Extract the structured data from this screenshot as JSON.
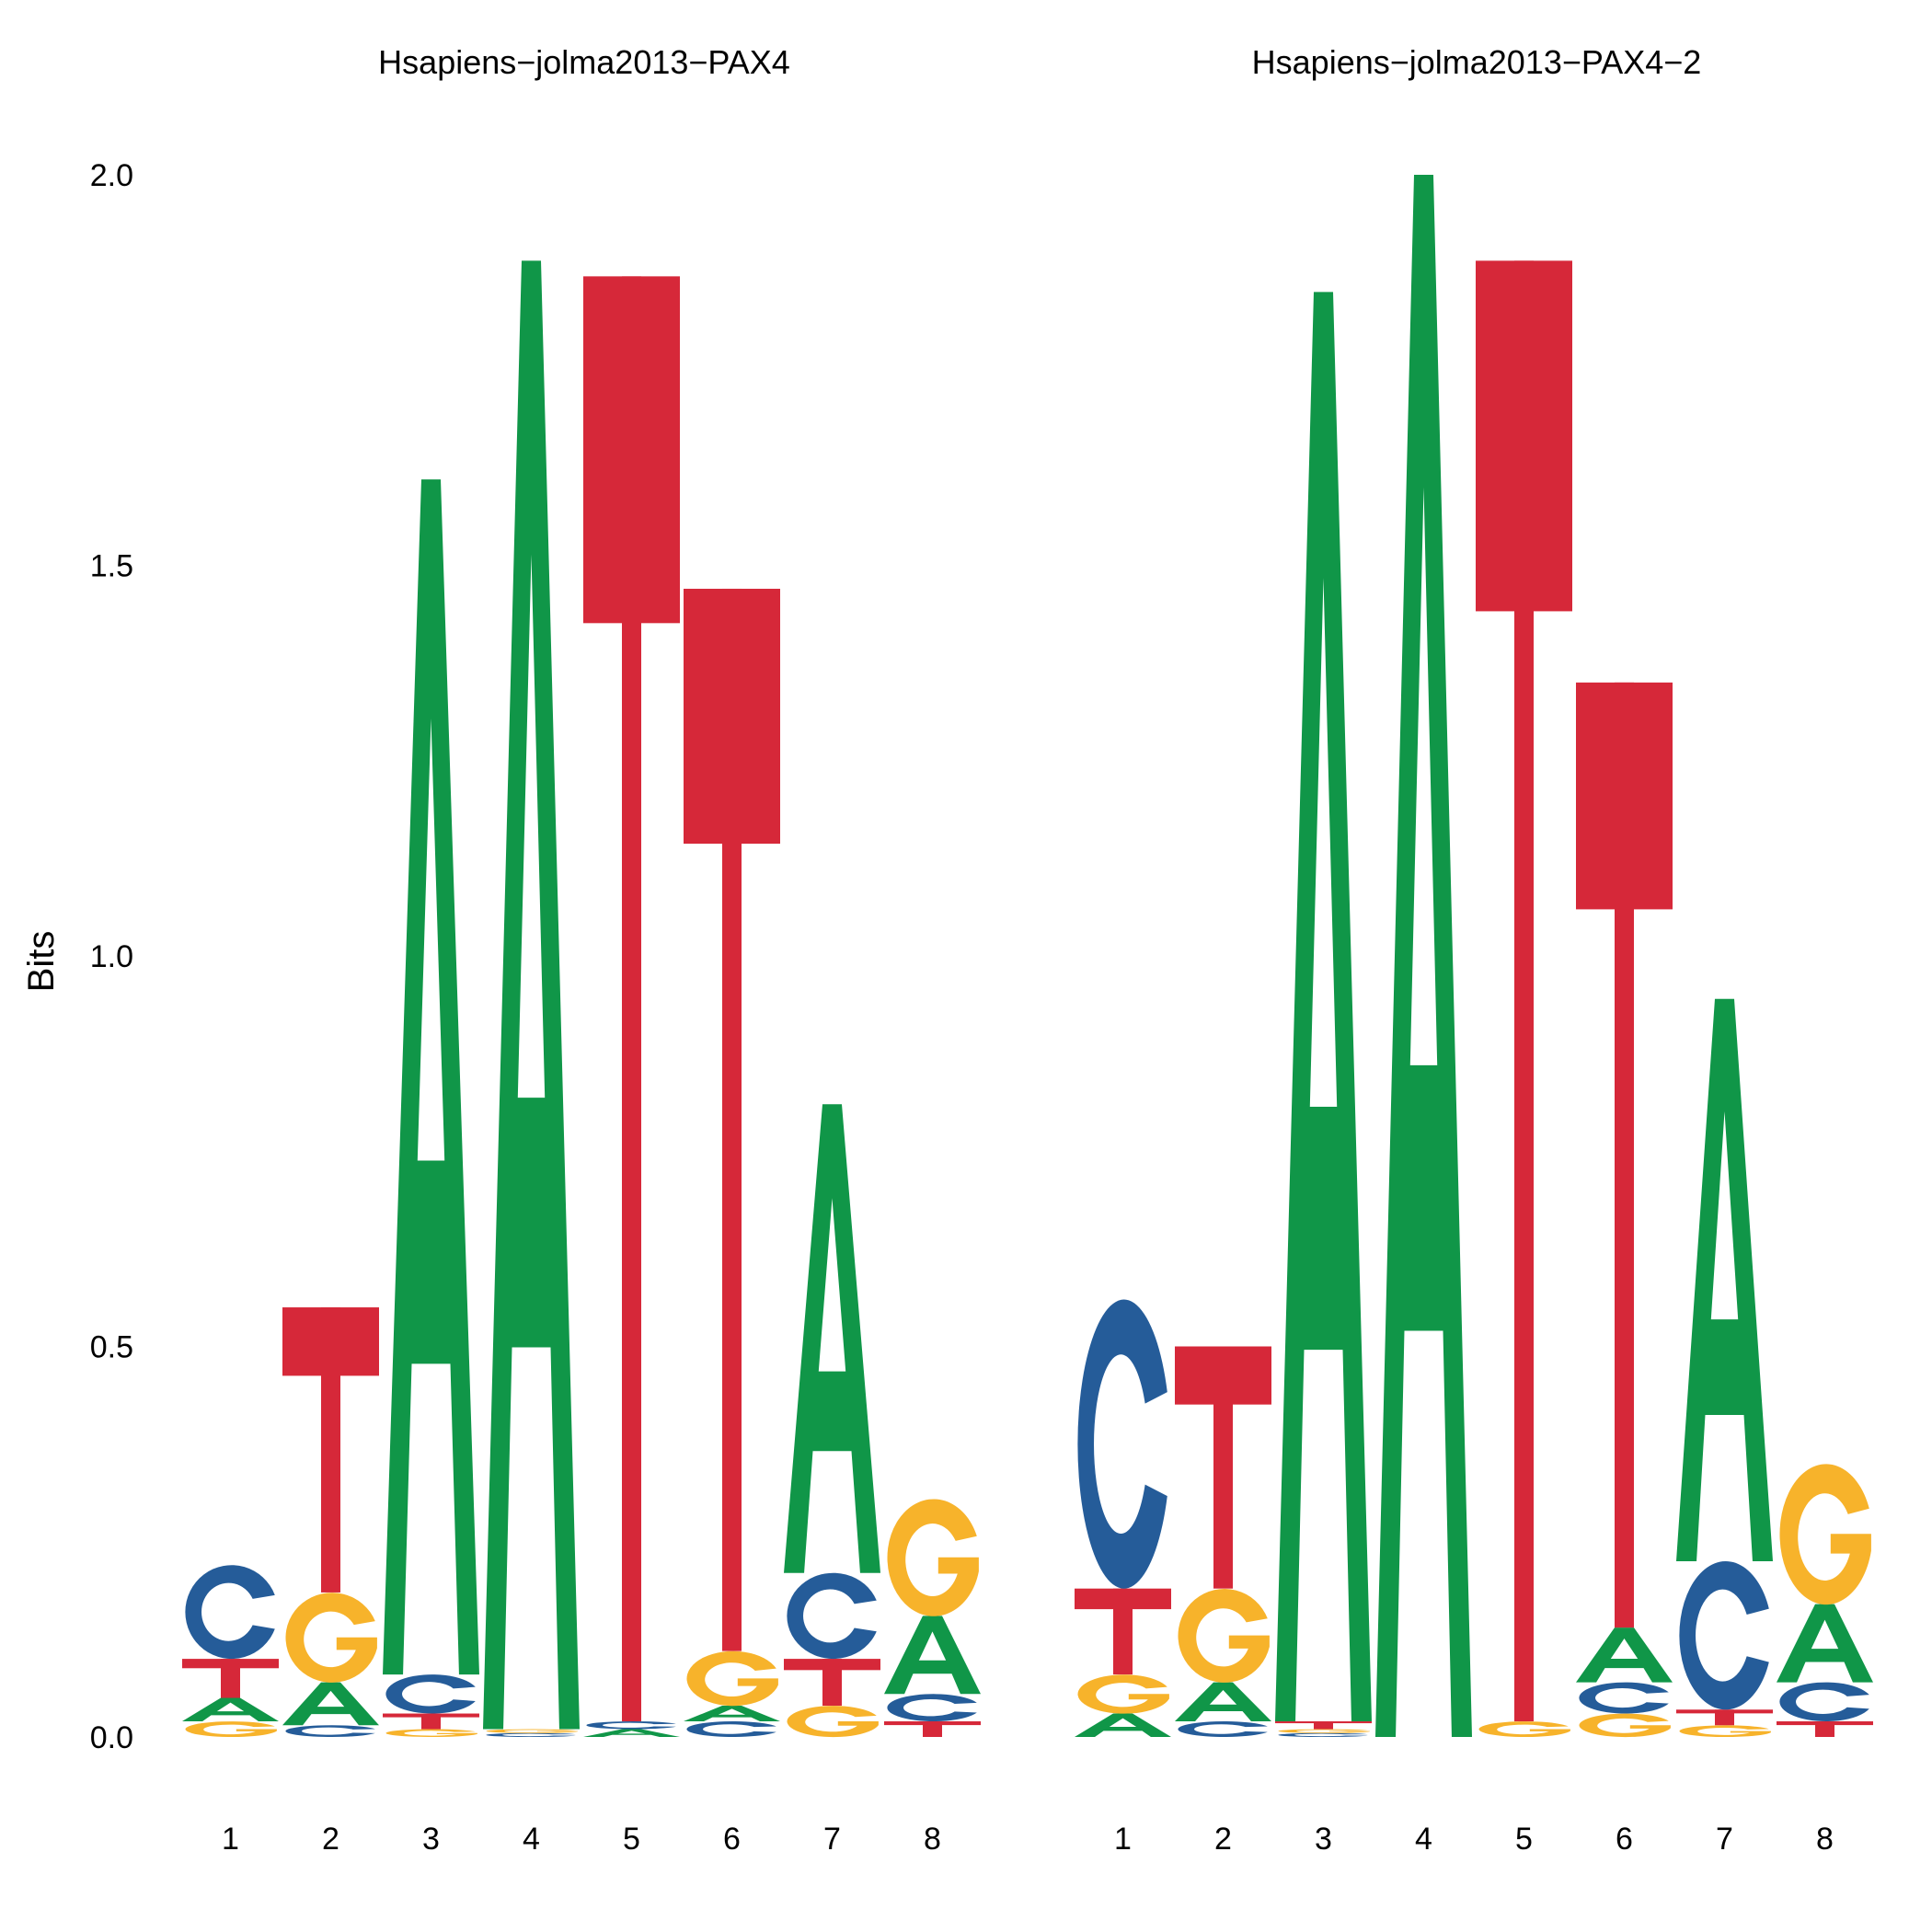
{
  "colors": {
    "A": "#109648",
    "C": "#255C99",
    "G": "#F7B32B",
    "T": "#D62839"
  },
  "chart_data": {
    "type": "sequence-logo",
    "ylabel": "Bits",
    "ylim": [
      0,
      2
    ],
    "yticks": [
      "0.0",
      "0.5",
      "1.0",
      "1.5",
      "2.0"
    ],
    "ytick_values": [
      0,
      0.5,
      1.0,
      1.5,
      2.0
    ],
    "grid": false,
    "panels": [
      {
        "title": "Hsapiens−jolma2013−PAX4",
        "positions": [
          "1",
          "2",
          "3",
          "4",
          "5",
          "6",
          "7",
          "8"
        ],
        "stacks": [
          [
            [
              "G",
              0.02
            ],
            [
              "A",
              0.03
            ],
            [
              "T",
              0.05
            ],
            [
              "C",
              0.12
            ]
          ],
          [
            [
              "C",
              0.015
            ],
            [
              "A",
              0.055
            ],
            [
              "G",
              0.115
            ],
            [
              "T",
              0.365
            ]
          ],
          [
            [
              "G",
              0.01
            ],
            [
              "T",
              0.02
            ],
            [
              "C",
              0.05
            ],
            [
              "A",
              1.53
            ]
          ],
          [
            [
              "C",
              0.005
            ],
            [
              "G",
              0.005
            ],
            [
              "A",
              1.88
            ]
          ],
          [
            [
              "A",
              0.01
            ],
            [
              "C",
              0.01
            ],
            [
              "T",
              1.85
            ]
          ],
          [
            [
              "C",
              0.02
            ],
            [
              "A",
              0.02
            ],
            [
              "G",
              0.07
            ],
            [
              "T",
              1.36
            ]
          ],
          [
            [
              "G",
              0.04
            ],
            [
              "T",
              0.06
            ],
            [
              "C",
              0.11
            ],
            [
              "A",
              0.6
            ]
          ],
          [
            [
              "T",
              0.02
            ],
            [
              "C",
              0.035
            ],
            [
              "A",
              0.1
            ],
            [
              "G",
              0.15
            ]
          ]
        ]
      },
      {
        "title": "Hsapiens−jolma2013−PAX4−2",
        "positions": [
          "1",
          "2",
          "3",
          "4",
          "5",
          "6",
          "7",
          "8"
        ],
        "stacks": [
          [
            [
              "A",
              0.03
            ],
            [
              "G",
              0.05
            ],
            [
              "T",
              0.11
            ],
            [
              "C",
              0.37
            ]
          ],
          [
            [
              "C",
              0.02
            ],
            [
              "A",
              0.05
            ],
            [
              "G",
              0.12
            ],
            [
              "T",
              0.31
            ]
          ],
          [
            [
              "C",
              0.005
            ],
            [
              "G",
              0.005
            ],
            [
              "T",
              0.01
            ],
            [
              "A",
              1.83
            ]
          ],
          [
            [
              "A",
              2.0
            ]
          ],
          [
            [
              "G",
              0.02
            ],
            [
              "T",
              1.87
            ]
          ],
          [
            [
              "G",
              0.03
            ],
            [
              "C",
              0.04
            ],
            [
              "A",
              0.07
            ],
            [
              "T",
              1.21
            ]
          ],
          [
            [
              "G",
              0.015
            ],
            [
              "T",
              0.02
            ],
            [
              "C",
              0.19
            ],
            [
              "A",
              0.72
            ]
          ],
          [
            [
              "T",
              0.02
            ],
            [
              "C",
              0.05
            ],
            [
              "A",
              0.1
            ],
            [
              "G",
              0.18
            ]
          ]
        ]
      }
    ]
  }
}
